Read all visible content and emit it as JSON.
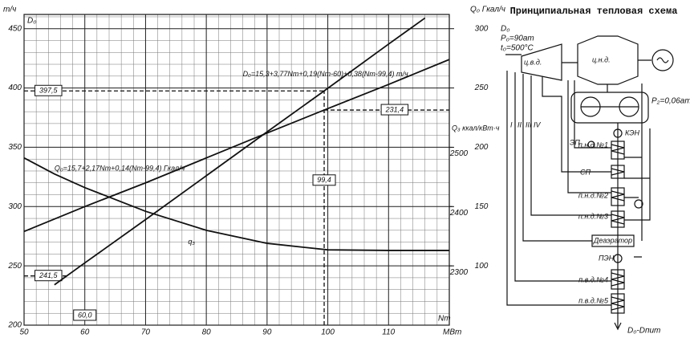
{
  "chart_data": {
    "type": "line",
    "y_title": "т/ч",
    "y_name": "D₀",
    "y2_title": "Q₀ Гкал/ч",
    "y3_title": "Q₃ ккал/кВт·ч",
    "x_name": "Nт",
    "x_unit": "МВт",
    "xlim": [
      50,
      120
    ],
    "xticks": [
      50,
      60,
      70,
      80,
      90,
      100,
      110
    ],
    "ylim": [
      200,
      462
    ],
    "yticks": [
      200,
      250,
      300,
      350,
      400,
      450
    ],
    "y2lim": [
      50,
      312
    ],
    "y2ticks": [
      100,
      150,
      200,
      250,
      300
    ],
    "y3lim": [
      2200,
      2724
    ],
    "y3ticks": [
      2300,
      2400,
      2500
    ],
    "grid": true,
    "minor_grid": {
      "x": 2,
      "y": 10
    },
    "series": [
      {
        "name": "D₀=15,3+3,77Nт+0,19(Nт-60)+0,38(Nт-99,4) т/ч",
        "color": "#111",
        "axis": "y",
        "x": [
          55,
          60,
          70,
          80,
          90,
          99.4,
          110,
          116
        ],
        "values": [
          234,
          252.5,
          289,
          326,
          363,
          397.5,
          437,
          459
        ]
      },
      {
        "name": "Q₀=15,7+2,17Nт+0,14(Nт-99,4) Гкал/ч",
        "color": "#111",
        "axis": "y2",
        "x": [
          50,
          60,
          70,
          80,
          90,
          99.4,
          110,
          120
        ],
        "values": [
          129,
          150,
          170,
          191,
          212,
          231.4,
          253,
          274
        ]
      },
      {
        "name": "q₃",
        "color": "#111",
        "axis": "y3",
        "x": [
          50,
          55,
          60,
          65,
          70,
          80,
          90,
          100,
          110,
          120
        ],
        "values": [
          2482,
          2455,
          2432,
          2412,
          2392,
          2360,
          2338,
          2327,
          2326,
          2326
        ]
      }
    ],
    "reference_lines": [
      {
        "label": "397,5",
        "value": 397.5,
        "axis": "y"
      },
      {
        "label": "241,5",
        "value": 241.5,
        "axis": "y"
      },
      {
        "label": "231,4",
        "value": 231.4,
        "axis": "y2"
      },
      {
        "label": "99,4",
        "value": 99.4,
        "axis": "x"
      },
      {
        "label": "60,0",
        "value": 60,
        "axis": "x"
      }
    ]
  },
  "schematic": {
    "title": "Принципиальная тепловая схема",
    "d0": "D₀",
    "p0": "P₀=90ат",
    "t0": "t₀=500°C",
    "hp": "ц.в.д.",
    "lp": "ц.н.д.",
    "p2": "P₂=0,06ат",
    "extractions": [
      "I",
      "II",
      "III",
      "IV"
    ],
    "ken": "КЭН",
    "ep": "ЭП",
    "lph1": "п.н.д.№1",
    "sp": "СП",
    "lph2": "п.н.д.№2",
    "lph3": "п.н.д.№3",
    "deaerator": "Деаэратор",
    "pen": "ПЭН",
    "hph4": "п.в.д.№4",
    "hph5": "п.в.д.№5",
    "out": "D₀-Dпит"
  }
}
